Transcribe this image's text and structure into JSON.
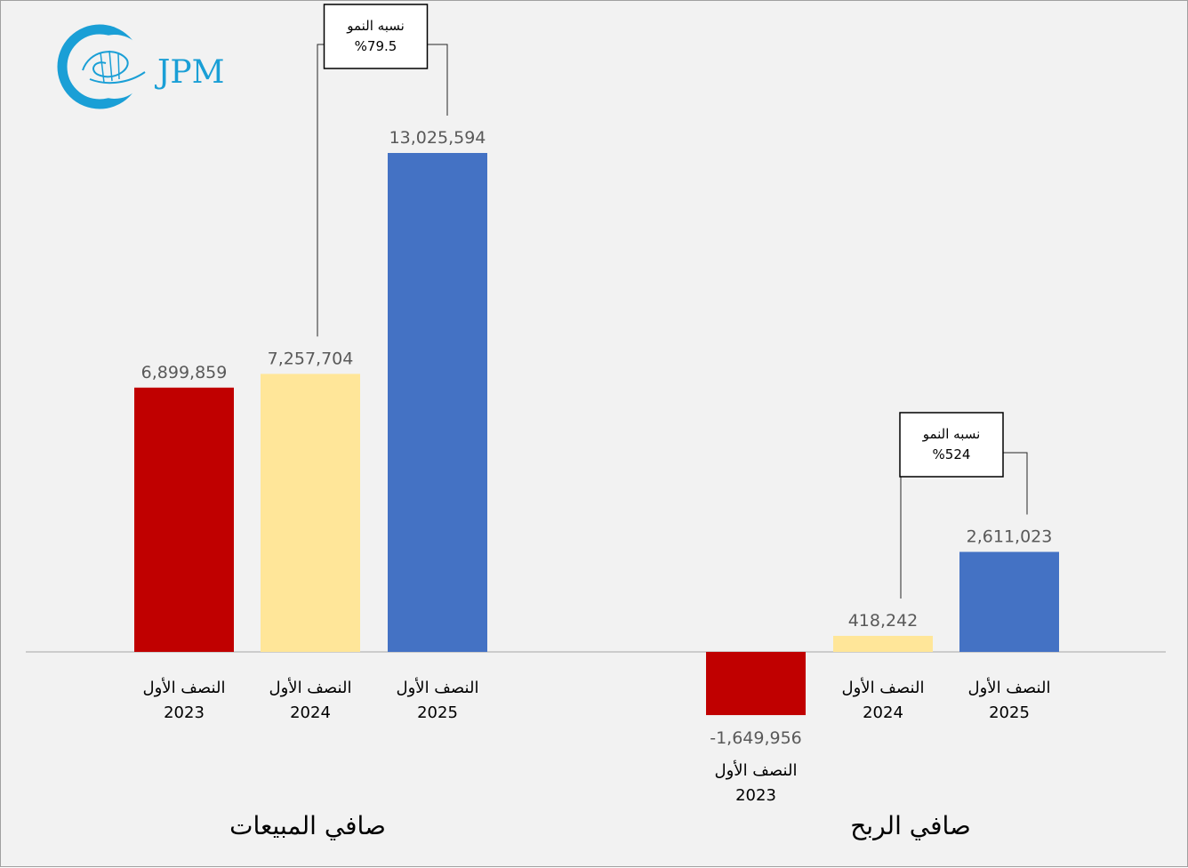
{
  "colors": {
    "h1_2023": "#c00000",
    "h1_2024": "#ffe699",
    "h1_2025": "#4472c4",
    "logo": "#1a9fd6"
  },
  "logo": {
    "text": "JPM"
  },
  "chart_data": [
    {
      "type": "bar",
      "title": "صافي المبيعات",
      "categories": [
        {
          "line1": "النصف الأول",
          "line2": "2023"
        },
        {
          "line1": "النصف الأول",
          "line2": "2024"
        },
        {
          "line1": "النصف الأول",
          "line2": "2025"
        }
      ],
      "values": [
        6899859,
        7257704,
        13025594
      ],
      "value_labels": [
        "6,899,859",
        "7,257,704",
        "13,025,594"
      ],
      "callout": {
        "line1": "نسبه النمو",
        "line2": "%79.5"
      }
    },
    {
      "type": "bar",
      "title": "صافي الربح",
      "categories": [
        {
          "line1": "النصف الأول",
          "line2": "2023"
        },
        {
          "line1": "النصف الأول",
          "line2": "2024"
        },
        {
          "line1": "النصف الأول",
          "line2": "2025"
        }
      ],
      "values": [
        -1649956,
        418242,
        2611023
      ],
      "value_labels": [
        "-1,649,956",
        "418,242",
        "2,611,023"
      ],
      "callout": {
        "line1": "نسبه النمو",
        "line2": "%524"
      }
    }
  ]
}
